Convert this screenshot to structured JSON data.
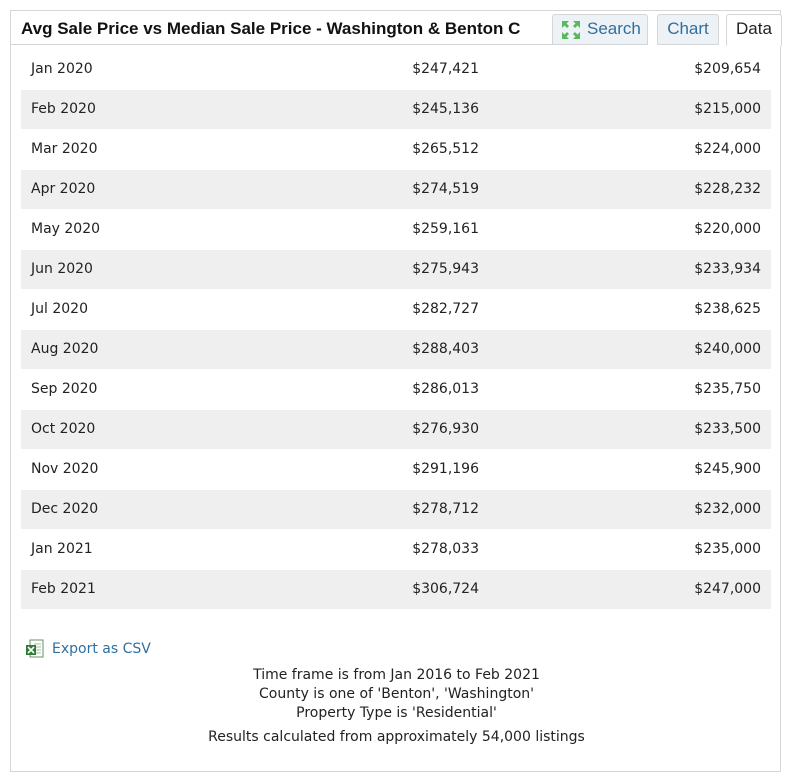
{
  "header": {
    "title": "Avg Sale Price vs Median Sale Price - Washington & Benton C",
    "tabs": {
      "search": "Search",
      "chart": "Chart",
      "data": "Data"
    },
    "active_tab": "Data",
    "search_icon": "expand-arrows-icon"
  },
  "table": {
    "rows": [
      {
        "month": "Jan 2020",
        "avg": "$247,421",
        "median": "$209,654"
      },
      {
        "month": "Feb 2020",
        "avg": "$245,136",
        "median": "$215,000"
      },
      {
        "month": "Mar 2020",
        "avg": "$265,512",
        "median": "$224,000"
      },
      {
        "month": "Apr 2020",
        "avg": "$274,519",
        "median": "$228,232"
      },
      {
        "month": "May 2020",
        "avg": "$259,161",
        "median": "$220,000"
      },
      {
        "month": "Jun 2020",
        "avg": "$275,943",
        "median": "$233,934"
      },
      {
        "month": "Jul 2020",
        "avg": "$282,727",
        "median": "$238,625"
      },
      {
        "month": "Aug 2020",
        "avg": "$288,403",
        "median": "$240,000"
      },
      {
        "month": "Sep 2020",
        "avg": "$286,013",
        "median": "$235,750"
      },
      {
        "month": "Oct 2020",
        "avg": "$276,930",
        "median": "$233,500"
      },
      {
        "month": "Nov 2020",
        "avg": "$291,196",
        "median": "$245,900"
      },
      {
        "month": "Dec 2020",
        "avg": "$278,712",
        "median": "$232,000"
      },
      {
        "month": "Jan 2021",
        "avg": "$278,033",
        "median": "$235,000"
      },
      {
        "month": "Feb 2021",
        "avg": "$306,724",
        "median": "$247,000"
      }
    ]
  },
  "export": {
    "label": "Export as CSV",
    "icon": "excel-file-icon"
  },
  "notes": {
    "timeframe": "Time frame is from Jan 2016 to Feb 2021",
    "county": "County is one of 'Benton', 'Washington'",
    "property_type": "Property Type is 'Residential'",
    "results": "Results calculated from approximately 54,000 listings"
  },
  "colors": {
    "link": "#2f6f9f",
    "tab_bg": "#edf2f7",
    "row_alt": "#efefef",
    "border": "#d6d6d6",
    "icon_green": "#5cb85c"
  }
}
